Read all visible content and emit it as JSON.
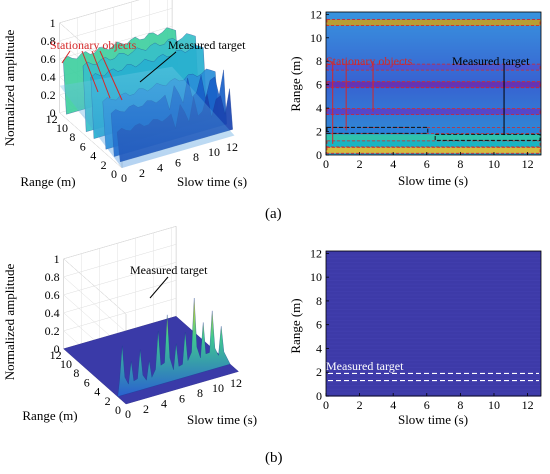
{
  "chart_data": [
    {
      "type": "surface",
      "panel": "a",
      "zlabel": "Normalized amplitude",
      "xlabel": "Slow time (s)",
      "ylabel": "Range (m)",
      "zticks": [
        "0",
        "0.2",
        "0.4",
        "0.6",
        "0.8",
        "1"
      ],
      "xticks": [
        "0",
        "2",
        "4",
        "6",
        "8",
        "10",
        "12"
      ],
      "yticks": [
        "0",
        "2",
        "4",
        "6",
        "8",
        "10",
        "12"
      ],
      "zlim": [
        0,
        1
      ],
      "xlim": [
        0,
        12.5
      ],
      "ylim": [
        0,
        12
      ],
      "annotations": [
        {
          "text": "Stationary objects",
          "color": "#d62728"
        },
        {
          "text": "Measured target",
          "color": "#000000"
        }
      ],
      "colormap": "parula"
    },
    {
      "type": "heatmap",
      "panel": "a",
      "xlabel": "Slow time (s)",
      "ylabel": "Range (m)",
      "xticks": [
        "0",
        "2",
        "4",
        "6",
        "8",
        "10",
        "12"
      ],
      "yticks": [
        "0",
        "2",
        "4",
        "6",
        "8",
        "10",
        "12"
      ],
      "xlim": [
        0,
        12.8
      ],
      "ylim": [
        0,
        12.2
      ],
      "bands": [
        {
          "range": 0.4,
          "color": "#e8c030"
        },
        {
          "range": 0.95,
          "color": "#18b8c0"
        },
        {
          "range": 1.5,
          "color": "#30c8a8"
        },
        {
          "range": 2.1,
          "color": "#2a7fd8"
        },
        {
          "range": 3.7,
          "color": "#5a40c8"
        },
        {
          "range": 6.0,
          "color": "#6a2fb0"
        },
        {
          "range": 7.5,
          "color": "#4a55d0"
        },
        {
          "range": 11.3,
          "color": "#c8a020"
        }
      ],
      "stationary_ranges": [
        0.4,
        0.95,
        2.1,
        3.7,
        6.0,
        7.5,
        11.3
      ],
      "target": {
        "range_before": 2.1,
        "range_after": 1.5,
        "switch_time": 6.0
      },
      "annotations": [
        {
          "text": "Stationary objects",
          "color": "#d62728"
        },
        {
          "text": "Measured target",
          "color": "#000000"
        }
      ]
    },
    {
      "type": "surface",
      "panel": "b",
      "zlabel": "Normalized amplitude",
      "xlabel": "Slow time (s)",
      "ylabel": "Range (m)",
      "zticks": [
        "0",
        "0.2",
        "0.4",
        "0.6",
        "0.8",
        "1"
      ],
      "xticks": [
        "0",
        "2",
        "4",
        "6",
        "8",
        "10",
        "12"
      ],
      "yticks": [
        "0",
        "2",
        "4",
        "6",
        "8",
        "10",
        "12"
      ],
      "zlim": [
        0,
        1
      ],
      "xlim": [
        0,
        12.5
      ],
      "ylim": [
        0,
        12
      ],
      "peaks": [
        {
          "t": 0.5,
          "z": 0.55
        },
        {
          "t": 1.5,
          "z": 0.35
        },
        {
          "t": 2.5,
          "z": 0.45
        },
        {
          "t": 3.5,
          "z": 0.3
        },
        {
          "t": 4.5,
          "z": 0.6
        },
        {
          "t": 5.5,
          "z": 0.75
        },
        {
          "t": 6.5,
          "z": 0.4
        },
        {
          "t": 7.5,
          "z": 0.5
        },
        {
          "t": 8.5,
          "z": 0.85
        },
        {
          "t": 9.5,
          "z": 0.55
        },
        {
          "t": 10.5,
          "z": 0.65
        },
        {
          "t": 11.5,
          "z": 0.45
        }
      ],
      "annotations": [
        {
          "text": "Measured target",
          "color": "#000000"
        }
      ],
      "colormap": "parula"
    },
    {
      "type": "heatmap",
      "panel": "b",
      "xlabel": "Slow time (s)",
      "ylabel": "Range (m)",
      "xticks": [
        "0",
        "2",
        "4",
        "6",
        "8",
        "10",
        "12"
      ],
      "yticks": [
        "0",
        "2",
        "4",
        "6",
        "8",
        "10",
        "12"
      ],
      "xlim": [
        0,
        12.8
      ],
      "ylim": [
        0,
        12.2
      ],
      "background": "#3d3aa8",
      "target_box": {
        "range_min": 1.3,
        "range_max": 1.9
      },
      "annotations": [
        {
          "text": "Measured target",
          "color": "#ffffff"
        }
      ]
    }
  ],
  "panel_labels": {
    "a": "(a)",
    "b": "(b)"
  }
}
